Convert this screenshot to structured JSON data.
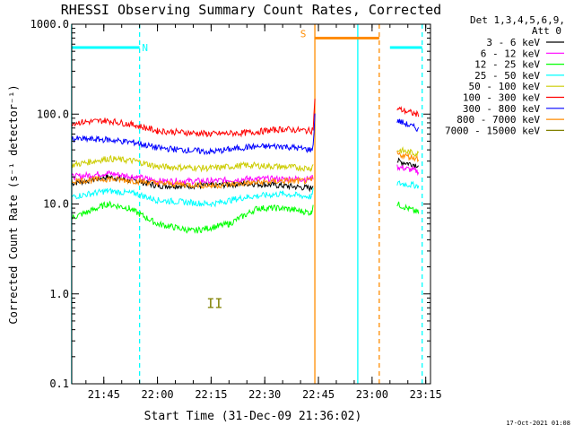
{
  "chart_data": {
    "type": "line",
    "title": "RHESSI Observing Summary Count Rates, Corrected",
    "xlabel": "Start Time (31-Dec-09 21:36:02)",
    "ylabel": "Corrected Count Rate (s⁻¹ detector⁻¹)",
    "yscale": "log",
    "ylim": [
      0.1,
      1000
    ],
    "xlim": [
      "21:36:02",
      "23:16:20"
    ],
    "x_ticks": [
      "21:45",
      "22:00",
      "22:15",
      "22:30",
      "22:45",
      "23:00",
      "23:15"
    ],
    "y_ticks": [
      "0.1",
      "1.0",
      "10.0",
      "100.0",
      "1000.0"
    ],
    "grid": false,
    "legend_position": "top-right",
    "legend_header": [
      "Det 1,3,4,5,6,9,",
      "Att 0"
    ],
    "footer_date": "17-Oct-2021 01:08",
    "annotations": [
      {
        "text": "N",
        "x": "21:55"
      },
      {
        "text": "S",
        "x": "22:42"
      },
      {
        "text": "II",
        "x": "22:16",
        "y": 0.7
      }
    ],
    "series": [
      {
        "name": "3 - 6 keV",
        "color": "#000000",
        "points": [
          [
            "21:36",
            17
          ],
          [
            "21:46",
            20
          ],
          [
            "21:54",
            18
          ],
          [
            "22:00",
            16
          ],
          [
            "22:15",
            16
          ],
          [
            "22:25",
            17
          ],
          [
            "22:35",
            16
          ],
          [
            "22:43",
            15
          ],
          [
            "22:43.5",
            17
          ],
          [
            "23:05",
            null
          ],
          [
            "23:07",
            30
          ],
          [
            "23:13",
            27
          ]
        ]
      },
      {
        "name": "6 - 12 keV",
        "color": "#ff00ff",
        "points": [
          [
            "21:36",
            20
          ],
          [
            "21:46",
            22
          ],
          [
            "21:54",
            20
          ],
          [
            "22:00",
            18
          ],
          [
            "22:15",
            18
          ],
          [
            "22:25",
            19
          ],
          [
            "22:35",
            19
          ],
          [
            "22:43",
            19
          ],
          [
            "22:43.5",
            20
          ],
          [
            "23:05",
            null
          ],
          [
            "23:07",
            26
          ],
          [
            "23:13",
            23
          ]
        ]
      },
      {
        "name": "12 - 25 keV",
        "color": "#00ff00",
        "points": [
          [
            "21:36",
            7
          ],
          [
            "21:40",
            8
          ],
          [
            "21:46",
            10
          ],
          [
            "21:52",
            9
          ],
          [
            "22:00",
            6
          ],
          [
            "22:10",
            5
          ],
          [
            "22:20",
            6
          ],
          [
            "22:28",
            9
          ],
          [
            "22:35",
            9
          ],
          [
            "22:43",
            8
          ],
          [
            "22:43.5",
            10
          ],
          [
            "23:05",
            null
          ],
          [
            "23:07",
            10
          ],
          [
            "23:13",
            8
          ]
        ]
      },
      {
        "name": "25 - 50 keV",
        "color": "#00ffff",
        "points": [
          [
            "21:36",
            12
          ],
          [
            "21:46",
            14
          ],
          [
            "21:54",
            13
          ],
          [
            "22:00",
            11
          ],
          [
            "22:15",
            10
          ],
          [
            "22:25",
            12
          ],
          [
            "22:35",
            13
          ],
          [
            "22:43",
            12
          ],
          [
            "22:43.5",
            14
          ],
          [
            "23:05",
            null
          ],
          [
            "23:07",
            17
          ],
          [
            "23:13",
            16
          ]
        ]
      },
      {
        "name": "50 - 100 keV",
        "color": "#cccc00",
        "points": [
          [
            "21:36",
            27
          ],
          [
            "21:46",
            32
          ],
          [
            "21:54",
            30
          ],
          [
            "22:00",
            26
          ],
          [
            "22:15",
            25
          ],
          [
            "22:25",
            27
          ],
          [
            "22:35",
            26
          ],
          [
            "22:43",
            25
          ],
          [
            "22:43.5",
            27
          ],
          [
            "23:05",
            null
          ],
          [
            "23:07",
            40
          ],
          [
            "23:13",
            36
          ]
        ]
      },
      {
        "name": "100 - 300 keV",
        "color": "#ff0000",
        "points": [
          [
            "21:36",
            80
          ],
          [
            "21:46",
            85
          ],
          [
            "21:54",
            75
          ],
          [
            "22:00",
            65
          ],
          [
            "22:15",
            60
          ],
          [
            "22:25",
            62
          ],
          [
            "22:35",
            68
          ],
          [
            "22:43",
            65
          ],
          [
            "22:43.5",
            70
          ],
          [
            "22:44",
            140
          ],
          [
            "23:05",
            null
          ],
          [
            "23:07",
            115
          ],
          [
            "23:13",
            98
          ]
        ]
      },
      {
        "name": "300 - 800 keV",
        "color": "#0000ff",
        "points": [
          [
            "21:36",
            53
          ],
          [
            "21:46",
            52
          ],
          [
            "21:54",
            48
          ],
          [
            "22:00",
            42
          ],
          [
            "22:15",
            38
          ],
          [
            "22:25",
            43
          ],
          [
            "22:35",
            44
          ],
          [
            "22:43",
            40
          ],
          [
            "22:43.5",
            45
          ],
          [
            "22:44",
            95
          ],
          [
            "23:05",
            null
          ],
          [
            "23:07",
            85
          ],
          [
            "23:13",
            68
          ]
        ]
      },
      {
        "name": "800 - 7000 keV",
        "color": "#ff8c00",
        "points": [
          [
            "21:36",
            18
          ],
          [
            "21:46",
            19
          ],
          [
            "21:54",
            18
          ],
          [
            "22:00",
            17
          ],
          [
            "22:15",
            16
          ],
          [
            "22:25",
            17
          ],
          [
            "22:35",
            18
          ],
          [
            "22:43",
            18
          ],
          [
            "22:43.5",
            20
          ],
          [
            "23:05",
            null
          ],
          [
            "23:07",
            36
          ],
          [
            "23:13",
            32
          ]
        ]
      },
      {
        "name": "7000 - 15000 keV",
        "color": "#808000",
        "points": []
      }
    ],
    "flags": [
      {
        "name": "N",
        "color": "#00ffff",
        "level": 550,
        "segments": [
          [
            "21:36",
            "21:55"
          ],
          [
            "23:05",
            "23:14"
          ]
        ]
      },
      {
        "name": "S",
        "color": "#ff8c00",
        "level": 700,
        "segments": [
          [
            "22:44",
            "23:02"
          ]
        ]
      }
    ],
    "vertical_markers": [
      {
        "x": "21:36",
        "color": "#00ffff",
        "style": "solid"
      },
      {
        "x": "21:55",
        "color": "#00ffff",
        "style": "dashed"
      },
      {
        "x": "22:44",
        "color": "#ff8c00",
        "style": "solid"
      },
      {
        "x": "22:56",
        "color": "#00ffff",
        "style": "solid"
      },
      {
        "x": "23:02",
        "color": "#ff8c00",
        "style": "dashed"
      },
      {
        "x": "23:14",
        "color": "#00ffff",
        "style": "dashed"
      }
    ]
  }
}
